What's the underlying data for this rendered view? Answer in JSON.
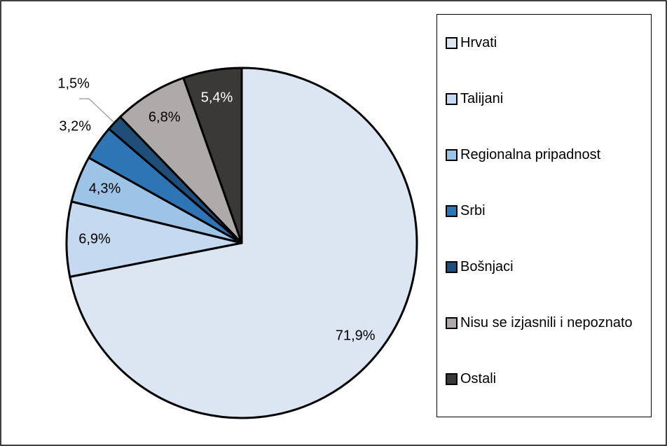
{
  "chart_data": {
    "type": "pie",
    "categories": [
      "Hrvati",
      "Talijani",
      "Regionalna pripadnost",
      "Srbi",
      "Bošnjaci",
      "Nisu se izjasnili i nepoznato",
      "Ostali"
    ],
    "values": [
      71.9,
      6.9,
      4.3,
      3.2,
      1.5,
      6.8,
      5.4
    ],
    "value_labels": [
      "71,9%",
      "6,9%",
      "4,3%",
      "3,2%",
      "1,5%",
      "6,8%",
      "5,4%"
    ],
    "colors": [
      "#dce6f2",
      "#c5d9f1",
      "#9dc3e6",
      "#2e75b6",
      "#1f4e79",
      "#aeaaaa",
      "#3b3838"
    ],
    "legend": "right"
  }
}
